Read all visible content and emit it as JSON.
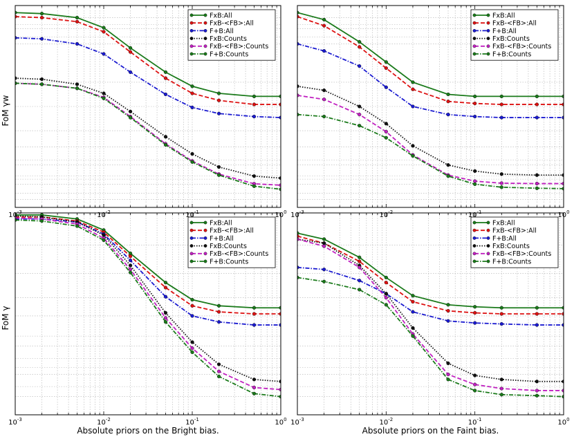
{
  "figure_title": "",
  "colors": {
    "FxB:All": "#1a7a1a",
    "FxB-<FB>:All": "#dd1111",
    "F+B:All": "#1a1ad0",
    "FxB:Counts": "#111111",
    "FxB-<FB>:Counts": "#c020c0",
    "F+B:Counts": "#1a7a1a"
  },
  "chart_data": [
    {
      "type": "line",
      "panel": "top-left",
      "title": "",
      "xlabel": "",
      "ylabel": "FoM γw",
      "xscale": "log",
      "xlim": [
        0.001,
        1
      ],
      "ylim": [
        0,
        1
      ],
      "x": [
        0.001,
        0.002,
        0.005,
        0.01,
        0.02,
        0.05,
        0.1,
        0.2,
        0.5,
        1
      ],
      "xtick_labels": [
        {
          "base": "10",
          "exp": "-3"
        },
        {
          "base": "10",
          "exp": "-2"
        },
        {
          "base": "10",
          "exp": "-1"
        },
        {
          "base": "10",
          "exp": "0"
        }
      ],
      "legend_position": "top-right",
      "series": [
        {
          "name": "FxB:All",
          "style": "solid",
          "values": [
            0.965,
            0.96,
            0.94,
            0.89,
            0.79,
            0.67,
            0.6,
            0.565,
            0.55,
            0.55
          ]
        },
        {
          "name": "FxB-<FB>:All",
          "style": "dashed",
          "values": [
            0.945,
            0.94,
            0.92,
            0.87,
            0.77,
            0.64,
            0.565,
            0.53,
            0.51,
            0.51
          ]
        },
        {
          "name": "F+B:All",
          "style": "dashdot",
          "values": [
            0.84,
            0.835,
            0.81,
            0.76,
            0.67,
            0.56,
            0.495,
            0.465,
            0.45,
            0.445
          ]
        },
        {
          "name": "FxB:Counts",
          "style": "dotted",
          "values": [
            0.64,
            0.635,
            0.61,
            0.565,
            0.475,
            0.35,
            0.265,
            0.2,
            0.155,
            0.145
          ]
        },
        {
          "name": "FxB-<FB>:Counts",
          "style": "dashed",
          "values": [
            0.615,
            0.61,
            0.59,
            0.545,
            0.45,
            0.315,
            0.23,
            0.165,
            0.117,
            0.11
          ]
        },
        {
          "name": "F+B:Counts",
          "style": "dashdot",
          "values": [
            0.615,
            0.61,
            0.59,
            0.54,
            0.445,
            0.31,
            0.225,
            0.16,
            0.105,
            0.09
          ]
        }
      ]
    },
    {
      "type": "line",
      "panel": "top-right",
      "title": "",
      "xlabel": "",
      "ylabel": "",
      "xscale": "log",
      "xlim": [
        0.001,
        1
      ],
      "ylim": [
        0,
        1
      ],
      "x": [
        0.001,
        0.002,
        0.005,
        0.01,
        0.02,
        0.05,
        0.1,
        0.2,
        0.5,
        1
      ],
      "xtick_labels": [
        {
          "base": "10",
          "exp": "-3"
        },
        {
          "base": "10",
          "exp": "-2"
        },
        {
          "base": "10",
          "exp": "-1"
        },
        {
          "base": "10",
          "exp": "0"
        }
      ],
      "legend_position": "top-right",
      "series": [
        {
          "name": "FxB:All",
          "style": "solid",
          "values": [
            0.965,
            0.93,
            0.82,
            0.72,
            0.62,
            0.56,
            0.55,
            0.55,
            0.55,
            0.55
          ]
        },
        {
          "name": "FxB-<FB>:All",
          "style": "dashed",
          "values": [
            0.945,
            0.9,
            0.795,
            0.69,
            0.585,
            0.525,
            0.515,
            0.51,
            0.51,
            0.51
          ]
        },
        {
          "name": "F+B:All",
          "style": "dashdot",
          "values": [
            0.81,
            0.775,
            0.7,
            0.595,
            0.5,
            0.46,
            0.45,
            0.445,
            0.445,
            0.445
          ]
        },
        {
          "name": "FxB:Counts",
          "style": "dotted",
          "values": [
            0.6,
            0.58,
            0.5,
            0.415,
            0.305,
            0.21,
            0.18,
            0.165,
            0.16,
            0.16
          ]
        },
        {
          "name": "FxB-<FB>:Counts",
          "style": "dashed",
          "values": [
            0.555,
            0.535,
            0.46,
            0.375,
            0.26,
            0.16,
            0.13,
            0.12,
            0.118,
            0.118
          ]
        },
        {
          "name": "F+B:Counts",
          "style": "dashdot",
          "values": [
            0.46,
            0.45,
            0.405,
            0.345,
            0.255,
            0.155,
            0.115,
            0.1,
            0.095,
            0.093
          ]
        }
      ]
    },
    {
      "type": "line",
      "panel": "bottom-left",
      "title": "",
      "xlabel": "Absolute priors on the Bright bias.",
      "ylabel": "FoM γ",
      "xscale": "log",
      "xlim": [
        0.001,
        1
      ],
      "ylim": [
        0,
        1
      ],
      "x": [
        0.001,
        0.002,
        0.005,
        0.01,
        0.02,
        0.05,
        0.1,
        0.2,
        0.5,
        1
      ],
      "xtick_labels": [
        {
          "base": "10",
          "exp": "-3"
        },
        {
          "base": "10",
          "exp": "-2"
        },
        {
          "base": "10",
          "exp": "-1"
        },
        {
          "base": "10",
          "exp": "0"
        }
      ],
      "legend_position": "top-right",
      "series": [
        {
          "name": "FxB:All",
          "style": "solid",
          "values": [
            0.99,
            0.99,
            0.97,
            0.915,
            0.8,
            0.655,
            0.57,
            0.54,
            0.53,
            0.53
          ]
        },
        {
          "name": "FxB-<FB>:All",
          "style": "dashed",
          "values": [
            0.98,
            0.98,
            0.96,
            0.905,
            0.785,
            0.63,
            0.54,
            0.51,
            0.5,
            0.5
          ]
        },
        {
          "name": "F+B:All",
          "style": "dashdot",
          "values": [
            0.97,
            0.97,
            0.955,
            0.895,
            0.765,
            0.585,
            0.49,
            0.46,
            0.445,
            0.445
          ]
        },
        {
          "name": "FxB:Counts",
          "style": "dotted",
          "values": [
            0.985,
            0.98,
            0.955,
            0.89,
            0.74,
            0.505,
            0.36,
            0.25,
            0.175,
            0.165
          ]
        },
        {
          "name": "FxB-<FB>:Counts",
          "style": "dashed",
          "values": [
            0.975,
            0.97,
            0.945,
            0.875,
            0.72,
            0.48,
            0.33,
            0.215,
            0.135,
            0.125
          ]
        },
        {
          "name": "F+B:Counts",
          "style": "dashdot",
          "values": [
            0.965,
            0.96,
            0.935,
            0.865,
            0.705,
            0.46,
            0.31,
            0.19,
            0.105,
            0.09
          ]
        }
      ]
    },
    {
      "type": "line",
      "panel": "bottom-right",
      "title": "",
      "xlabel": "Absolute priors on the Faint bias.",
      "ylabel": "",
      "xscale": "log",
      "xlim": [
        0.001,
        1
      ],
      "ylim": [
        0,
        1
      ],
      "x": [
        0.001,
        0.002,
        0.005,
        0.01,
        0.02,
        0.05,
        0.1,
        0.2,
        0.5,
        1
      ],
      "xtick_labels": [
        {
          "base": "10",
          "exp": "-3"
        },
        {
          "base": "10",
          "exp": "-2"
        },
        {
          "base": "10",
          "exp": "-1"
        },
        {
          "base": "10",
          "exp": "0"
        }
      ],
      "legend_position": "top-right",
      "series": [
        {
          "name": "FxB:All",
          "style": "solid",
          "values": [
            0.9,
            0.87,
            0.78,
            0.68,
            0.59,
            0.545,
            0.535,
            0.53,
            0.53,
            0.53
          ]
        },
        {
          "name": "FxB-<FB>:All",
          "style": "dashed",
          "values": [
            0.885,
            0.85,
            0.76,
            0.655,
            0.56,
            0.515,
            0.505,
            0.5,
            0.5,
            0.5
          ]
        },
        {
          "name": "F+B:All",
          "style": "dashdot",
          "values": [
            0.73,
            0.72,
            0.665,
            0.6,
            0.51,
            0.465,
            0.455,
            0.45,
            0.445,
            0.445
          ]
        },
        {
          "name": "FxB:Counts",
          "style": "dotted",
          "values": [
            0.87,
            0.85,
            0.74,
            0.6,
            0.43,
            0.255,
            0.195,
            0.175,
            0.165,
            0.165
          ]
        },
        {
          "name": "FxB-<FB>:Counts",
          "style": "dashed",
          "values": [
            0.87,
            0.835,
            0.73,
            0.58,
            0.4,
            0.2,
            0.15,
            0.13,
            0.12,
            0.12
          ]
        },
        {
          "name": "F+B:Counts",
          "style": "dashdot",
          "values": [
            0.68,
            0.66,
            0.62,
            0.545,
            0.39,
            0.175,
            0.12,
            0.1,
            0.095,
            0.09
          ]
        }
      ]
    }
  ]
}
